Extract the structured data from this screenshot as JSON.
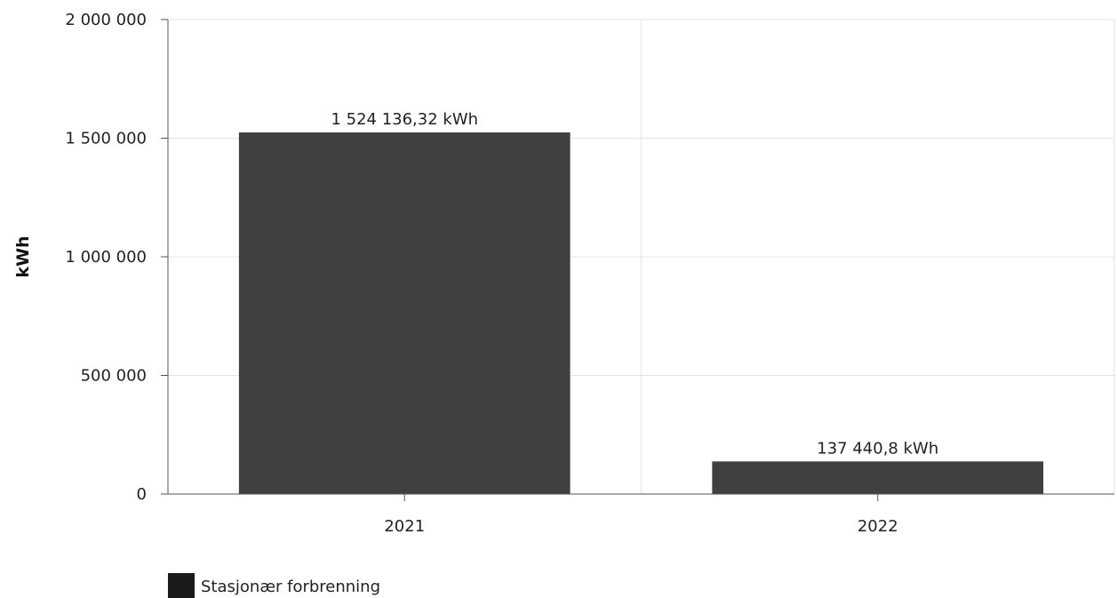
{
  "chart_data": {
    "type": "bar",
    "categories": [
      "2021",
      "2022"
    ],
    "series": [
      {
        "name": "Stasjonær forbrenning",
        "values": [
          1524136.32,
          137440.8
        ],
        "labels": [
          "1 524 136,32 kWh",
          "137 440,8 kWh"
        ]
      }
    ],
    "ylabel": "kWh",
    "ylim": [
      0,
      2000000
    ],
    "yticks": [
      0,
      500000,
      1000000,
      1500000,
      2000000
    ],
    "ytick_labels": [
      "0",
      "500 000",
      "1 000 000",
      "1 500 000",
      "2 000 000"
    ],
    "grid": true,
    "legend_position": "bottom-left",
    "colors": {
      "bar": "#404040",
      "legend_swatch": "#1a1a1a",
      "grid": "#e3e3e3",
      "axis": "#555555"
    }
  }
}
